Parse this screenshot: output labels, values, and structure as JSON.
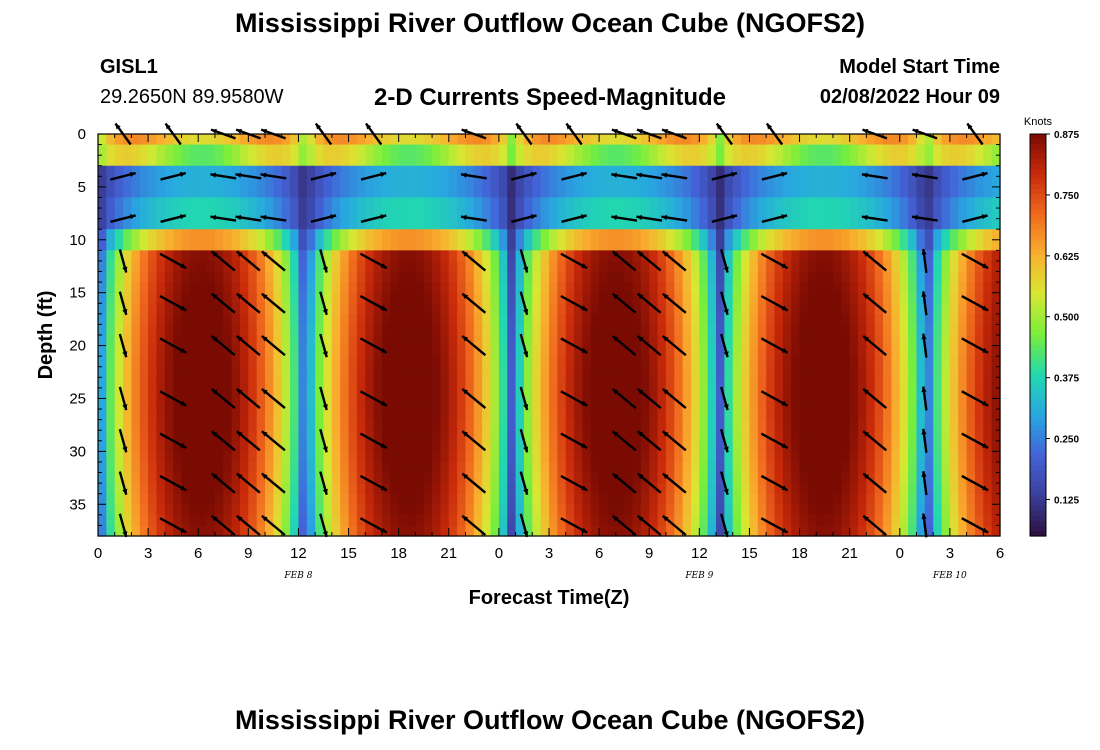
{
  "header": {
    "title": "Mississippi River Outflow Ocean Cube (NGOFS2)",
    "station_id": "GISL1",
    "station_coords": "29.2650N  89.9580W",
    "subtitle": "2-D Currents Speed-Magnitude",
    "model_label": "Model Start Time",
    "model_date": "02/08/2022 Hour 09"
  },
  "footer": {
    "title": "Mississippi River Outflow Ocean Cube (NGOFS2)"
  },
  "chart_data": {
    "type": "heatmap",
    "xlabel": "Forecast Time(Z)",
    "ylabel": "Depth (ft)",
    "x_range_hours": [
      0,
      54
    ],
    "x_tick_labels": [
      "0",
      "3",
      "6",
      "9",
      "12",
      "15",
      "18",
      "21",
      "0",
      "3",
      "6",
      "9",
      "12",
      "15",
      "18",
      "21",
      "0",
      "3",
      "6"
    ],
    "date_labels": [
      {
        "hour": 12,
        "text": "FEB 8"
      },
      {
        "hour": 36,
        "text": "FEB 9"
      },
      {
        "hour": 51,
        "text": "FEB 10"
      }
    ],
    "y_range_ft": [
      0,
      38
    ],
    "y_ticks": [
      0,
      5,
      10,
      15,
      20,
      25,
      30,
      35
    ],
    "y_tick_labels": [
      "0",
      "5",
      "10",
      "15",
      "20",
      "25",
      "30",
      "35"
    ],
    "colorbar": {
      "unit": "Knots",
      "min": 0.05,
      "max": 0.875,
      "ticks": [
        0.875,
        0.75,
        0.625,
        0.5,
        0.375,
        0.25,
        0.125
      ],
      "tick_labels": [
        "0.875",
        "0.750",
        "0.625",
        "0.500",
        "0.375",
        "0.250",
        "0.125"
      ],
      "colors": [
        "#2b0f3d",
        "#3b3f9a",
        "#4363d8",
        "#28a7e0",
        "#22d8b0",
        "#78ee3c",
        "#d6e832",
        "#f9b02e",
        "#f06a1e",
        "#c92a0a",
        "#7a0b03"
      ]
    },
    "vector_rows_ft": [
      0,
      4,
      8,
      12,
      16,
      20,
      25,
      29,
      33,
      37
    ],
    "vector_cols_hours": [
      1.5,
      4.5,
      7.5,
      9.0,
      10.5,
      13.5,
      16.5,
      22.5,
      25.5,
      28.5,
      31.5,
      33.0,
      34.5,
      37.5,
      40.5,
      46.5,
      49.5,
      52.5
    ],
    "grid": false,
    "legend": "colorbar-right"
  }
}
